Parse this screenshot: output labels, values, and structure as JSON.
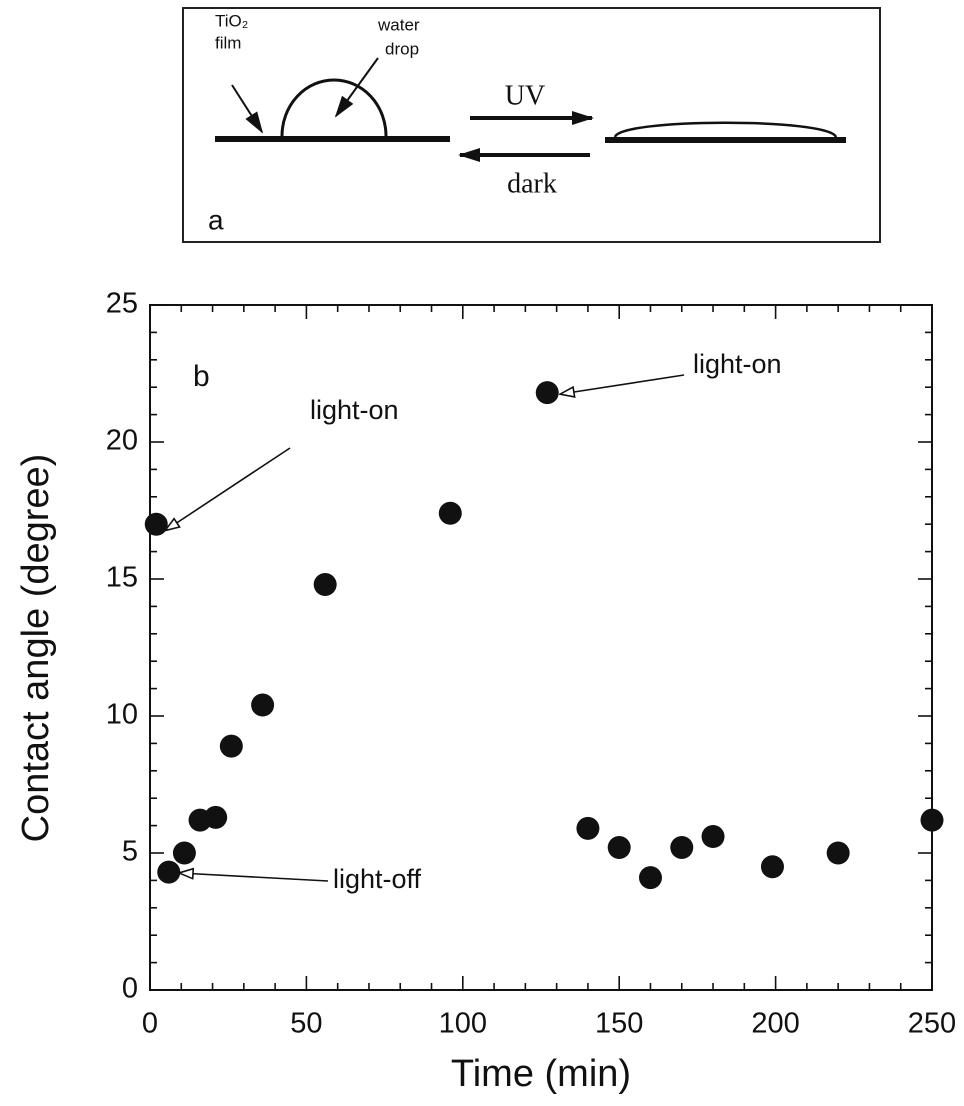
{
  "diagram": {
    "film_label": [
      "TiO₂",
      "film"
    ],
    "drop_label": [
      "water",
      "drop"
    ],
    "forward": "UV",
    "backward": "dark",
    "panel": "a"
  },
  "chart_data": {
    "type": "scatter",
    "panel": "b",
    "x_label": "Time (min)",
    "y_label": "Contact angle (degree)",
    "x": [
      2,
      6,
      11,
      16,
      21,
      26,
      36,
      56,
      96,
      127,
      140,
      150,
      160,
      170,
      180,
      199,
      220,
      250
    ],
    "series": [
      {
        "color": "#111111",
        "values": [
          17,
          4.3,
          5.0,
          6.2,
          6.3,
          8.9,
          10.4,
          14.8,
          17.4,
          21.8,
          5.9,
          5.2,
          4.1,
          5.2,
          5.6,
          4.5,
          5.0,
          6.2
        ]
      }
    ],
    "xlim": [
      0,
      250
    ],
    "ylim": [
      0,
      25
    ],
    "xticks": [
      0,
      50,
      100,
      150,
      200,
      250
    ],
    "yticks": [
      0,
      5,
      10,
      15,
      20,
      25
    ],
    "annotations": [
      "light-on",
      "light-on",
      "light-off"
    ]
  }
}
